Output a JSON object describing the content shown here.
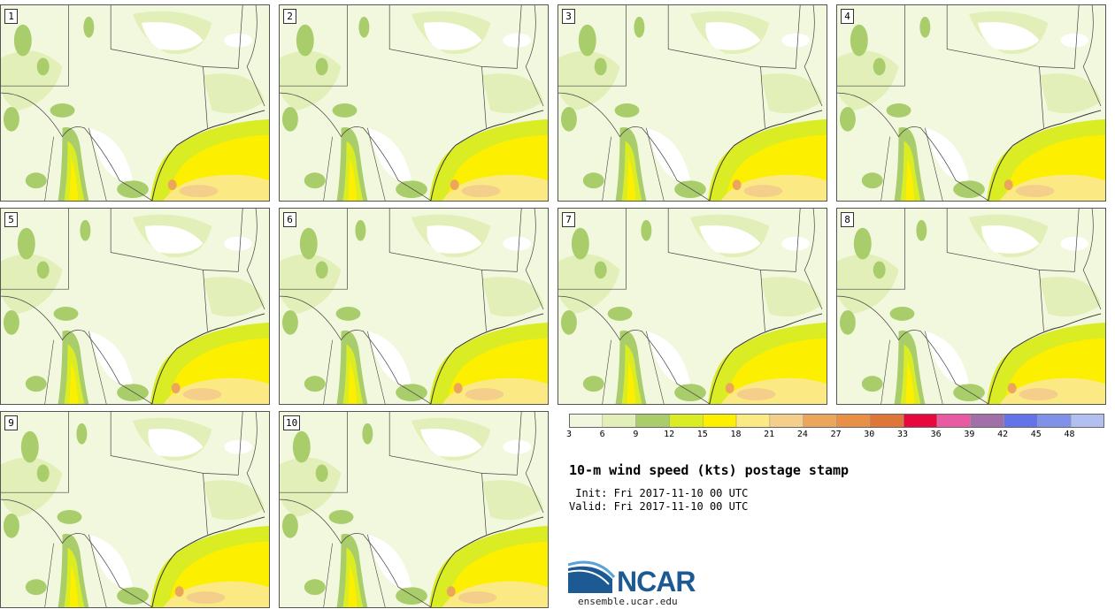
{
  "panels": [
    {
      "label": "1"
    },
    {
      "label": "2"
    },
    {
      "label": "3"
    },
    {
      "label": "4"
    },
    {
      "label": "5"
    },
    {
      "label": "6"
    },
    {
      "label": "7"
    },
    {
      "label": "8"
    },
    {
      "label": "9"
    },
    {
      "label": "10"
    }
  ],
  "colorbar": {
    "ticks": [
      "3",
      "6",
      "9",
      "12",
      "15",
      "18",
      "21",
      "24",
      "27",
      "30",
      "33",
      "36",
      "39",
      "42",
      "45",
      "48"
    ],
    "colors": [
      "#f1f6df",
      "#e2efb8",
      "#a9cd6a",
      "#d9ec24",
      "#fdef00",
      "#fbe983",
      "#f3cf8b",
      "#eca65b",
      "#e89046",
      "#dd7637",
      "#e8083d",
      "#e85aa2",
      "#a270a8",
      "#6573e8",
      "#7f91e8",
      "#b1c0f0"
    ]
  },
  "title": "10-m wind speed (kts) postage stamp",
  "init": " Init: Fri 2017-11-10 00 UTC",
  "valid": "Valid: Fri 2017-11-10 00 UTC",
  "logo": {
    "text": "NCAR"
  },
  "site": "ensemble.ucar.edu",
  "palette": {
    "bg": "#f2f8dd",
    "lightgreen": "#e2efb8",
    "green": "#a9cd6a",
    "lime": "#d9ec24",
    "yellow": "#fdef00",
    "paleyellow": "#fbe983",
    "tan": "#f3cf8b",
    "orange": "#eca65b",
    "white": "#ffffff",
    "line": "#444444"
  }
}
